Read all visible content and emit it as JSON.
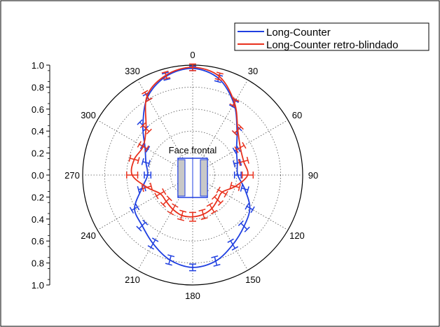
{
  "chart_data": {
    "type": "polar",
    "angle_unit": "degrees",
    "angle_zero": "top",
    "angle_direction": "clockwise",
    "r_range": [
      0,
      1.0
    ],
    "grid": true,
    "angle_tick_labels": [
      "0",
      "30",
      "60",
      "90",
      "120",
      "150",
      "180",
      "210",
      "240",
      "270",
      "300",
      "330"
    ],
    "r_tick_labels": [
      "1.0",
      "0.8",
      "0.6",
      "0.4",
      "0.2",
      "0.0",
      "0.2",
      "0.4",
      "0.6",
      "0.8",
      "1.0"
    ],
    "r_tick_values": [
      1.0,
      0.8,
      0.6,
      0.4,
      0.2,
      0.0,
      0.2,
      0.4,
      0.6,
      0.8,
      1.0
    ],
    "annotation": "Face frontal",
    "legend_position": "top-right",
    "series": [
      {
        "name": "Long-Counter",
        "color": "#1f3fe0",
        "angles": [
          0,
          15,
          30,
          45,
          60,
          75,
          90,
          105,
          120,
          135,
          150,
          165,
          180,
          195,
          210,
          225,
          240,
          255,
          270,
          285,
          300,
          315,
          330,
          345
        ],
        "values": [
          0.97,
          0.91,
          0.75,
          0.57,
          0.46,
          0.42,
          0.41,
          0.49,
          0.6,
          0.66,
          0.73,
          0.81,
          0.84,
          0.8,
          0.72,
          0.65,
          0.61,
          0.48,
          0.41,
          0.44,
          0.5,
          0.64,
          0.82,
          0.93
        ],
        "errors": [
          0.02,
          0.03,
          0.03,
          0.03,
          0.02,
          0.03,
          0.03,
          0.03,
          0.03,
          0.04,
          0.04,
          0.04,
          0.03,
          0.04,
          0.04,
          0.04,
          0.03,
          0.03,
          0.03,
          0.03,
          0.03,
          0.04,
          0.03,
          0.03
        ]
      },
      {
        "name": "Long-Counter retro-blindado",
        "color": "#e8301c",
        "angles": [
          0,
          15,
          30,
          45,
          60,
          75,
          90,
          105,
          120,
          135,
          150,
          165,
          180,
          195,
          210,
          225,
          240,
          255,
          270,
          285,
          300,
          315,
          330,
          345
        ],
        "values": [
          0.98,
          0.93,
          0.76,
          0.58,
          0.5,
          0.48,
          0.5,
          0.4,
          0.31,
          0.32,
          0.35,
          0.37,
          0.38,
          0.38,
          0.36,
          0.34,
          0.34,
          0.43,
          0.55,
          0.55,
          0.52,
          0.6,
          0.83,
          0.94
        ],
        "errors": [
          0.03,
          0.03,
          0.03,
          0.04,
          0.04,
          0.04,
          0.05,
          0.04,
          0.04,
          0.04,
          0.04,
          0.04,
          0.04,
          0.04,
          0.04,
          0.04,
          0.04,
          0.04,
          0.05,
          0.04,
          0.04,
          0.04,
          0.04,
          0.03
        ]
      }
    ]
  }
}
